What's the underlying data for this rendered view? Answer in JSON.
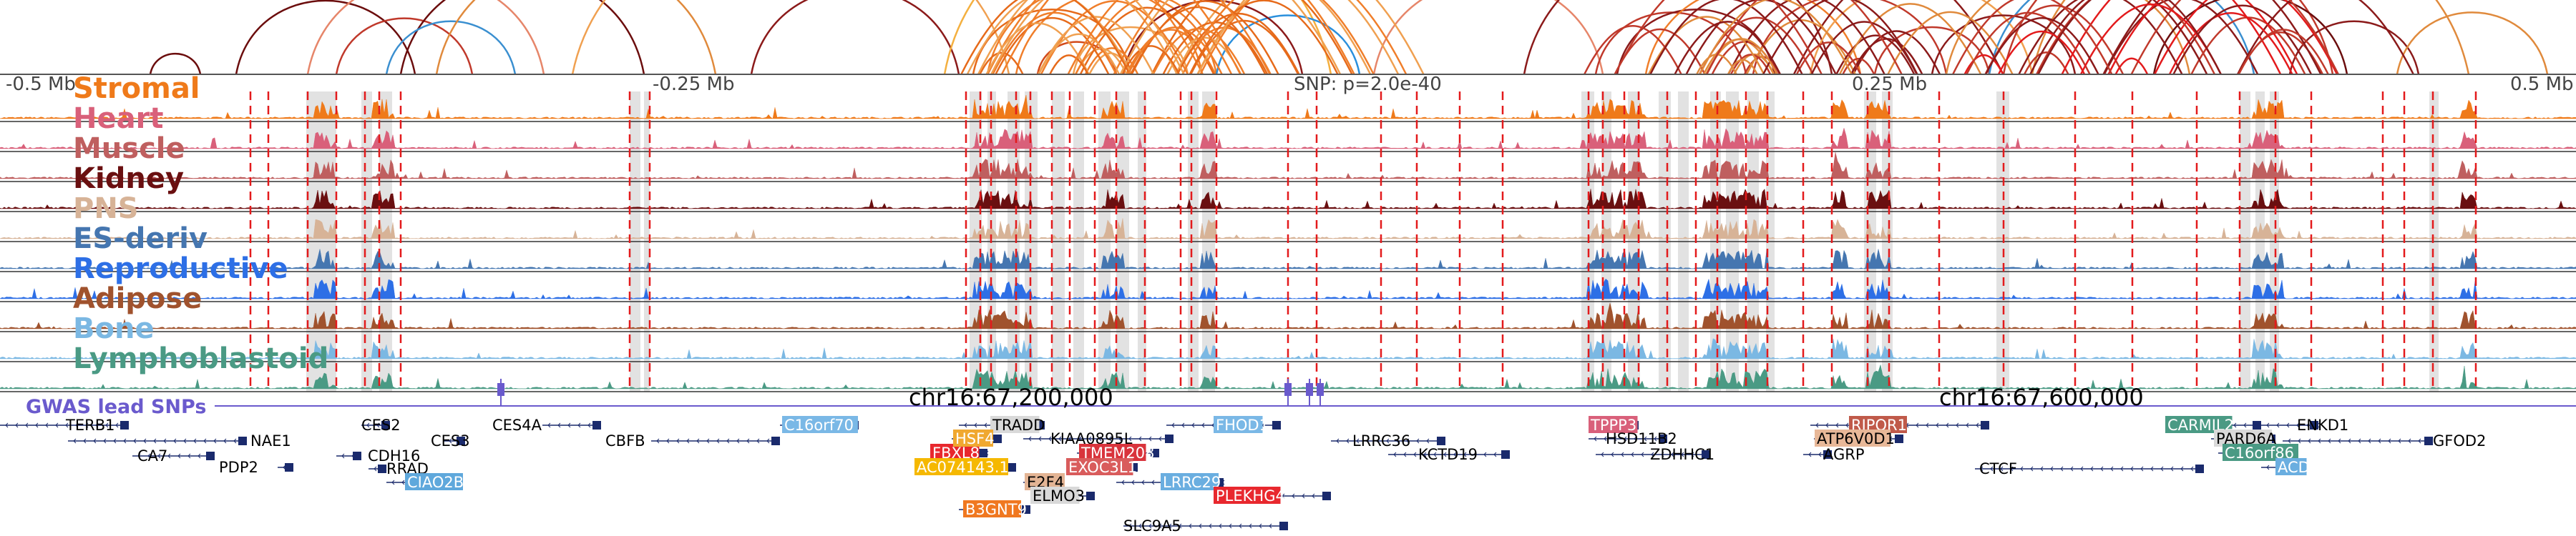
{
  "coords": {
    "minus_half": "-0.5 Mb",
    "minus_quarter": "-0.25 Mb",
    "snp": "SNP: p=2.0e-40",
    "plus_quarter": "0.25 Mb",
    "plus_half": "0.5 Mb"
  },
  "tracks": [
    {
      "name": "Stromal",
      "color": "#ef7a1a"
    },
    {
      "name": "Heart",
      "color": "#d9607a"
    },
    {
      "name": "Muscle",
      "color": "#bf5f5f"
    },
    {
      "name": "Kidney",
      "color": "#6a0f10"
    },
    {
      "name": "PNS",
      "color": "#d7b397"
    },
    {
      "name": "ES-deriv",
      "color": "#4576b0"
    },
    {
      "name": "Reproductive",
      "color": "#2d6fe6"
    },
    {
      "name": "Adipose",
      "color": "#a0522d"
    },
    {
      "name": "Bone",
      "color": "#7bb8e3"
    },
    {
      "name": "Lymphoblastoid",
      "color": "#4a9a84"
    }
  ],
  "gwas_label": "GWAS lead SNPs",
  "chr_labels": {
    "left": "chr16:67,200,000",
    "right": "chr16:67,600,000"
  },
  "genes": [
    {
      "name": "TERB1",
      "color": "#000000"
    },
    {
      "name": "NAE1",
      "color": "#000000"
    },
    {
      "name": "CA7",
      "color": "#000000"
    },
    {
      "name": "PDP2",
      "color": "#000000"
    },
    {
      "name": "CES2",
      "color": "#000000"
    },
    {
      "name": "CDH16",
      "color": "#000000"
    },
    {
      "name": "RRAD",
      "color": "#000000"
    },
    {
      "name": "CIAO2B",
      "color": "#5fa8dc"
    },
    {
      "name": "CES3",
      "color": "#000000"
    },
    {
      "name": "CES4A",
      "color": "#000000"
    },
    {
      "name": "CBFB",
      "color": "#000000"
    },
    {
      "name": "C16orf70",
      "color": "#7ab8e6"
    },
    {
      "name": "TRADD",
      "color": "#d9d9d9"
    },
    {
      "name": "FBXL8",
      "color": "#e8282e"
    },
    {
      "name": "HSF4",
      "color": "#f0a830"
    },
    {
      "name": "AC074143.1",
      "color": "#f5b800"
    },
    {
      "name": "KIAA0895L",
      "color": "#000000"
    },
    {
      "name": "TMEM208",
      "color": "#d9343c"
    },
    {
      "name": "EXOC3L1",
      "color": "#d95c5c"
    },
    {
      "name": "E2F4",
      "color": "#e3b494"
    },
    {
      "name": "ELMO3",
      "color": "#d9d9d9"
    },
    {
      "name": "B3GNT9",
      "color": "#f07820"
    },
    {
      "name": "LRRC29",
      "color": "#6aaee0"
    },
    {
      "name": "FHOD1",
      "color": "#7ab8e6"
    },
    {
      "name": "PLEKHG4",
      "color": "#e8282e"
    },
    {
      "name": "SLC9A5",
      "color": "#000000"
    },
    {
      "name": "LRRC36",
      "color": "#000000"
    },
    {
      "name": "KCTD19",
      "color": "#000000"
    },
    {
      "name": "TPPP3",
      "color": "#d9607a"
    },
    {
      "name": "HSD11B2",
      "color": "#000000"
    },
    {
      "name": "ZDHHC1",
      "color": "#000000"
    },
    {
      "name": "RIPOR1",
      "color": "#c05a4a"
    },
    {
      "name": "ATP6V0D1",
      "color": "#e8b898"
    },
    {
      "name": "AGRP",
      "color": "#000000"
    },
    {
      "name": "CTCF",
      "color": "#000000"
    },
    {
      "name": "CARMIL2",
      "color": "#4a9a84"
    },
    {
      "name": "PARD6A",
      "color": "#d9d9d9"
    },
    {
      "name": "C16orf86",
      "color": "#4a9a84"
    },
    {
      "name": "ACD",
      "color": "#6aaee0"
    },
    {
      "name": "ENKD1",
      "color": "#000000"
    },
    {
      "name": "GFOD2",
      "color": "#000000"
    }
  ]
}
